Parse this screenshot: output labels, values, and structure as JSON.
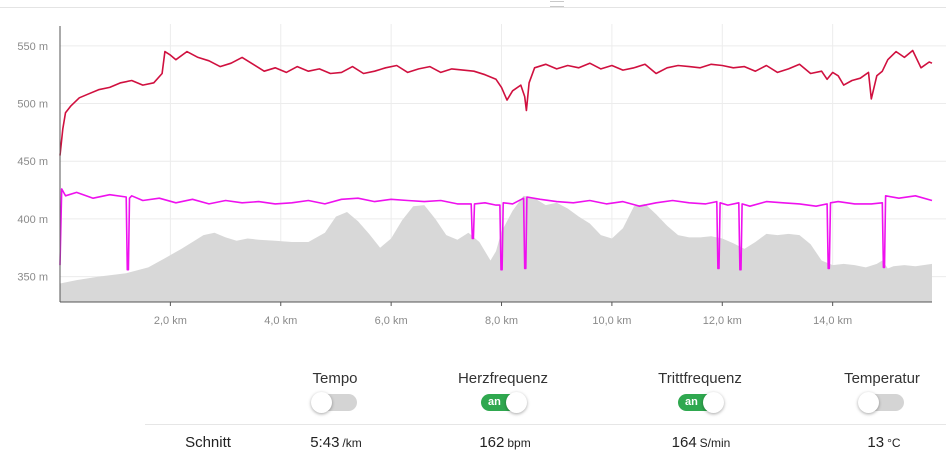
{
  "chart_data": {
    "type": "area",
    "x_ticks": [
      "2,0 km",
      "4,0 km",
      "6,0 km",
      "8,0 km",
      "10,0 km",
      "12,0 km",
      "14,0 km"
    ],
    "y_ticks": [
      "550 m",
      "500 m",
      "450 m",
      "400 m",
      "350 m"
    ],
    "x_range": [
      0,
      15.8
    ],
    "y_range": [
      328,
      562
    ],
    "grid": true,
    "series": [
      {
        "style": "area",
        "color": "#d8d8d8",
        "x": [
          0,
          0.3,
          0.7,
          1.2,
          1.6,
          1.9,
          2.2,
          2.4,
          2.6,
          2.8,
          3.0,
          3.2,
          3.4,
          3.6,
          3.9,
          4.2,
          4.5,
          4.8,
          5.0,
          5.2,
          5.4,
          5.6,
          5.8,
          6.0,
          6.2,
          6.4,
          6.6,
          6.8,
          7.0,
          7.2,
          7.4,
          7.6,
          7.8,
          7.9,
          8.0,
          8.2,
          8.4,
          8.6,
          8.8,
          9.0,
          9.2,
          9.4,
          9.6,
          9.8,
          10.0,
          10.2,
          10.4,
          10.6,
          10.8,
          11.0,
          11.2,
          11.4,
          11.6,
          11.8,
          12.0,
          12.2,
          12.4,
          12.6,
          12.8,
          13.0,
          13.2,
          13.4,
          13.6,
          13.8,
          14.0,
          14.2,
          14.4,
          14.6,
          14.8,
          14.9,
          15.0,
          15.1,
          15.3,
          15.5,
          15.8
        ],
        "y": [
          344,
          347,
          350,
          353,
          358,
          366,
          374,
          380,
          386,
          388,
          384,
          381,
          383,
          382,
          381,
          380,
          380,
          388,
          402,
          406,
          398,
          387,
          375,
          383,
          399,
          411,
          412,
          400,
          386,
          382,
          388,
          380,
          364,
          372,
          389,
          407,
          420,
          418,
          412,
          414,
          409,
          402,
          396,
          386,
          383,
          392,
          411,
          413,
          404,
          394,
          386,
          384,
          384,
          385,
          383,
          379,
          374,
          380,
          387,
          386,
          387,
          386,
          378,
          364,
          360,
          361,
          360,
          358,
          361,
          364,
          357,
          359,
          360,
          359,
          361
        ]
      },
      {
        "name": "Herzfrequenz",
        "style": "line",
        "color": "#ee11ee",
        "x": [
          0,
          0.03,
          0.1,
          0.3,
          0.6,
          0.9,
          1.2,
          1.22,
          1.24,
          1.26,
          1.3,
          1.5,
          1.8,
          2.1,
          2.4,
          2.7,
          3.0,
          3.3,
          3.6,
          3.9,
          4.2,
          4.5,
          4.8,
          5.1,
          5.4,
          5.7,
          6.0,
          6.3,
          6.6,
          6.9,
          7.2,
          7.45,
          7.47,
          7.49,
          7.51,
          7.7,
          7.9,
          7.97,
          7.99,
          8.01,
          8.03,
          8.2,
          8.4,
          8.42,
          8.44,
          8.46,
          8.7,
          9.0,
          9.3,
          9.6,
          9.9,
          10.2,
          10.5,
          10.8,
          11.1,
          11.4,
          11.7,
          11.9,
          11.92,
          11.94,
          11.96,
          12.1,
          12.3,
          12.32,
          12.34,
          12.36,
          12.5,
          12.8,
          13.1,
          13.4,
          13.7,
          13.9,
          13.92,
          13.94,
          13.96,
          14.1,
          14.4,
          14.7,
          14.9,
          14.92,
          14.94,
          14.96,
          15.2,
          15.5,
          15.8
        ],
        "y": [
          360,
          426,
          420,
          423,
          418,
          421,
          419,
          356,
          356,
          418,
          420,
          416,
          418,
          414,
          417,
          413,
          416,
          414,
          415,
          413,
          414,
          416,
          413,
          417,
          418,
          415,
          417,
          416,
          415,
          416,
          413,
          413,
          383,
          383,
          413,
          414,
          412,
          412,
          356,
          356,
          414,
          413,
          418,
          357,
          357,
          419,
          417,
          415,
          414,
          416,
          413,
          415,
          411,
          414,
          416,
          414,
          413,
          415,
          357,
          357,
          414,
          412,
          414,
          356,
          356,
          413,
          411,
          415,
          414,
          413,
          411,
          413,
          357,
          357,
          414,
          415,
          413,
          413,
          414,
          358,
          358,
          420,
          418,
          420,
          416
        ]
      },
      {
        "style": "line",
        "color": "#d0103f",
        "x": [
          0,
          0.05,
          0.1,
          0.2,
          0.35,
          0.5,
          0.7,
          0.9,
          1.1,
          1.3,
          1.5,
          1.7,
          1.85,
          1.9,
          2.0,
          2.1,
          2.3,
          2.5,
          2.7,
          2.9,
          3.1,
          3.3,
          3.5,
          3.7,
          3.9,
          4.1,
          4.3,
          4.5,
          4.7,
          4.9,
          5.1,
          5.3,
          5.5,
          5.7,
          5.9,
          6.1,
          6.3,
          6.5,
          6.7,
          6.9,
          7.1,
          7.3,
          7.5,
          7.7,
          7.9,
          8.0,
          8.1,
          8.2,
          8.35,
          8.42,
          8.45,
          8.5,
          8.6,
          8.8,
          9.0,
          9.2,
          9.4,
          9.6,
          9.8,
          10.0,
          10.2,
          10.4,
          10.6,
          10.8,
          11.0,
          11.2,
          11.4,
          11.6,
          11.8,
          12.0,
          12.2,
          12.4,
          12.6,
          12.8,
          13.0,
          13.2,
          13.4,
          13.6,
          13.8,
          13.9,
          14.0,
          14.1,
          14.2,
          14.35,
          14.5,
          14.65,
          14.7,
          14.8,
          14.9,
          15.0,
          15.15,
          15.3,
          15.45,
          15.6,
          15.75,
          15.8
        ],
        "y": [
          455,
          478,
          492,
          498,
          505,
          508,
          512,
          514,
          518,
          520,
          516,
          518,
          526,
          545,
          542,
          538,
          545,
          540,
          537,
          532,
          535,
          540,
          534,
          528,
          531,
          527,
          532,
          528,
          530,
          526,
          527,
          532,
          526,
          528,
          531,
          533,
          527,
          530,
          532,
          527,
          530,
          529,
          528,
          525,
          521,
          514,
          503,
          511,
          516,
          506,
          494,
          518,
          531,
          534,
          530,
          533,
          531,
          535,
          530,
          533,
          529,
          531,
          534,
          526,
          531,
          533,
          532,
          531,
          534,
          533,
          531,
          532,
          528,
          533,
          527,
          530,
          534,
          526,
          528,
          521,
          527,
          524,
          516,
          520,
          522,
          527,
          504,
          524,
          528,
          538,
          545,
          540,
          546,
          531,
          536,
          535
        ]
      }
    ]
  },
  "controls": [
    {
      "label": "Tempo",
      "state": "off",
      "on_text": ""
    },
    {
      "label": "Herzfrequenz",
      "state": "on",
      "on_text": "an"
    },
    {
      "label": "Trittfrequenz",
      "state": "on",
      "on_text": "an"
    },
    {
      "label": "Temperatur",
      "state": "off",
      "on_text": ""
    }
  ],
  "summary": {
    "label": "Schnitt",
    "tempo": {
      "value": "5:43",
      "unit": "/km"
    },
    "heart_rate": {
      "value": "162",
      "unit": "bpm"
    },
    "cadence": {
      "value": "164",
      "unit": "S/min"
    },
    "temperature": {
      "value": "13",
      "unit": "°C"
    }
  }
}
